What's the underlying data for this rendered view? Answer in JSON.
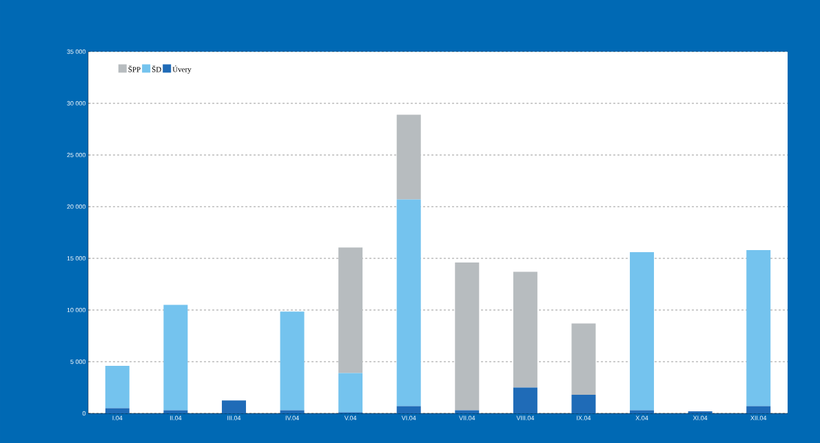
{
  "chart_data": {
    "type": "bar",
    "stacked": true,
    "categories": [
      "I.04",
      "II.04",
      "III.04",
      "IV.04",
      "V.04",
      "VI.04",
      "VII.04",
      "VIII.04",
      "IX.04",
      "X.04",
      "XI.04",
      "XII.04"
    ],
    "series": [
      {
        "name": "Úvery",
        "color": "#1f6bb7",
        "values": [
          500,
          300,
          1250,
          300,
          100,
          700,
          300,
          2500,
          1800,
          300,
          200,
          700
        ]
      },
      {
        "name": "ŠD",
        "color": "#74c3ee",
        "values": [
          4100,
          10200,
          0,
          9550,
          3800,
          20000,
          0,
          0,
          0,
          15300,
          0,
          15100
        ]
      },
      {
        "name": "ŠPP",
        "color": "#b7bcbf",
        "values": [
          0,
          0,
          0,
          0,
          12150,
          8200,
          14300,
          11200,
          6900,
          0,
          0,
          0
        ]
      }
    ],
    "ylim": [
      0,
      35000
    ],
    "yticks": [
      0,
      {
        "value": 5000,
        "label": "5 000"
      },
      {
        "value": 10000,
        "label": "10 000"
      },
      {
        "value": 15000,
        "label": "15 000"
      },
      {
        "value": 20000,
        "label": "20 000"
      },
      {
        "value": 25000,
        "label": "25 000"
      },
      {
        "value": 30000,
        "label": "30 000"
      },
      {
        "value": 35000,
        "label": "35 000"
      }
    ],
    "grid": "y",
    "legend": "top left"
  }
}
